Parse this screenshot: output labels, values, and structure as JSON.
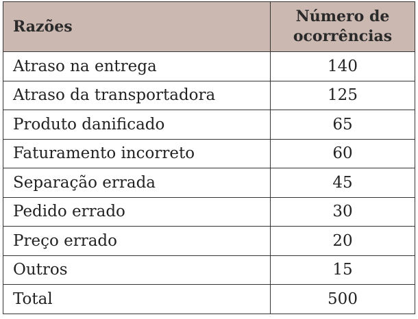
{
  "table": {
    "headers": {
      "reason": "Razões",
      "count_line1": "Número de",
      "count_line2": "ocorrências"
    },
    "rows": [
      {
        "reason": "Atraso na entrega",
        "count": "140"
      },
      {
        "reason": "Atraso da transportadora",
        "count": "125"
      },
      {
        "reason": "Produto danificado",
        "count": "65"
      },
      {
        "reason": "Faturamento incorreto",
        "count": "60"
      },
      {
        "reason": "Separação errada",
        "count": "45"
      },
      {
        "reason": "Pedido errado",
        "count": "30"
      },
      {
        "reason": "Preço errado",
        "count": "20"
      },
      {
        "reason": "Outros",
        "count": "15"
      },
      {
        "reason": "Total",
        "count": "500"
      }
    ]
  },
  "colors": {
    "header_background": "#cbb8b1",
    "border": "#333333",
    "text": "#222222"
  }
}
